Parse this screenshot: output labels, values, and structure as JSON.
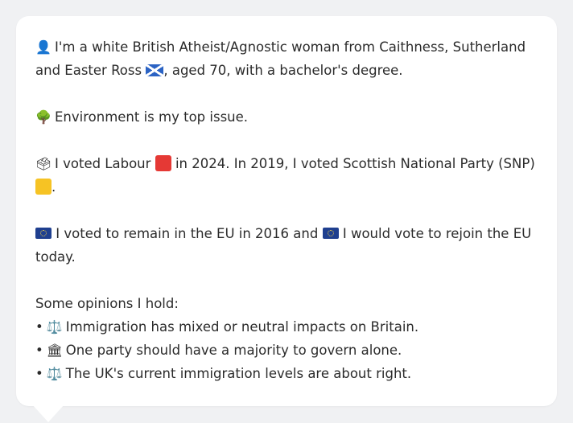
{
  "profile": {
    "line1_pre": "I'm a white British Atheist/Agnostic woman from Caithness, Sutherland and Easter Ross",
    "line1_post": ", aged 70, with a bachelor's degree.",
    "person_icon": "person-silhouette-icon",
    "flag_icon": "scotland-flag-icon"
  },
  "issue": {
    "icon": "tree-icon",
    "text": "Environment is my top issue."
  },
  "vote": {
    "icon": "ballot-box-icon",
    "text_pre": "I voted Labour",
    "text_mid": "in 2024. In 2019, I voted Scottish National Party (SNP)",
    "text_post": ".",
    "labour_color": "#e53935",
    "snp_color": "#f6c324"
  },
  "eu": {
    "icon": "eu-flag-icon",
    "text_pre": "I voted to remain in the EU in 2016 and",
    "text_post": "I would vote to rejoin the EU today."
  },
  "opinions": {
    "heading": "Some opinions I hold:",
    "items": [
      {
        "icon": "scales-icon",
        "text": "Immigration has mixed or neutral impacts on Britain."
      },
      {
        "icon": "classical-building-icon",
        "text": "One party should have a majority to govern alone."
      },
      {
        "icon": "scales-icon",
        "text": "The UK's current immigration levels are about right."
      }
    ]
  }
}
